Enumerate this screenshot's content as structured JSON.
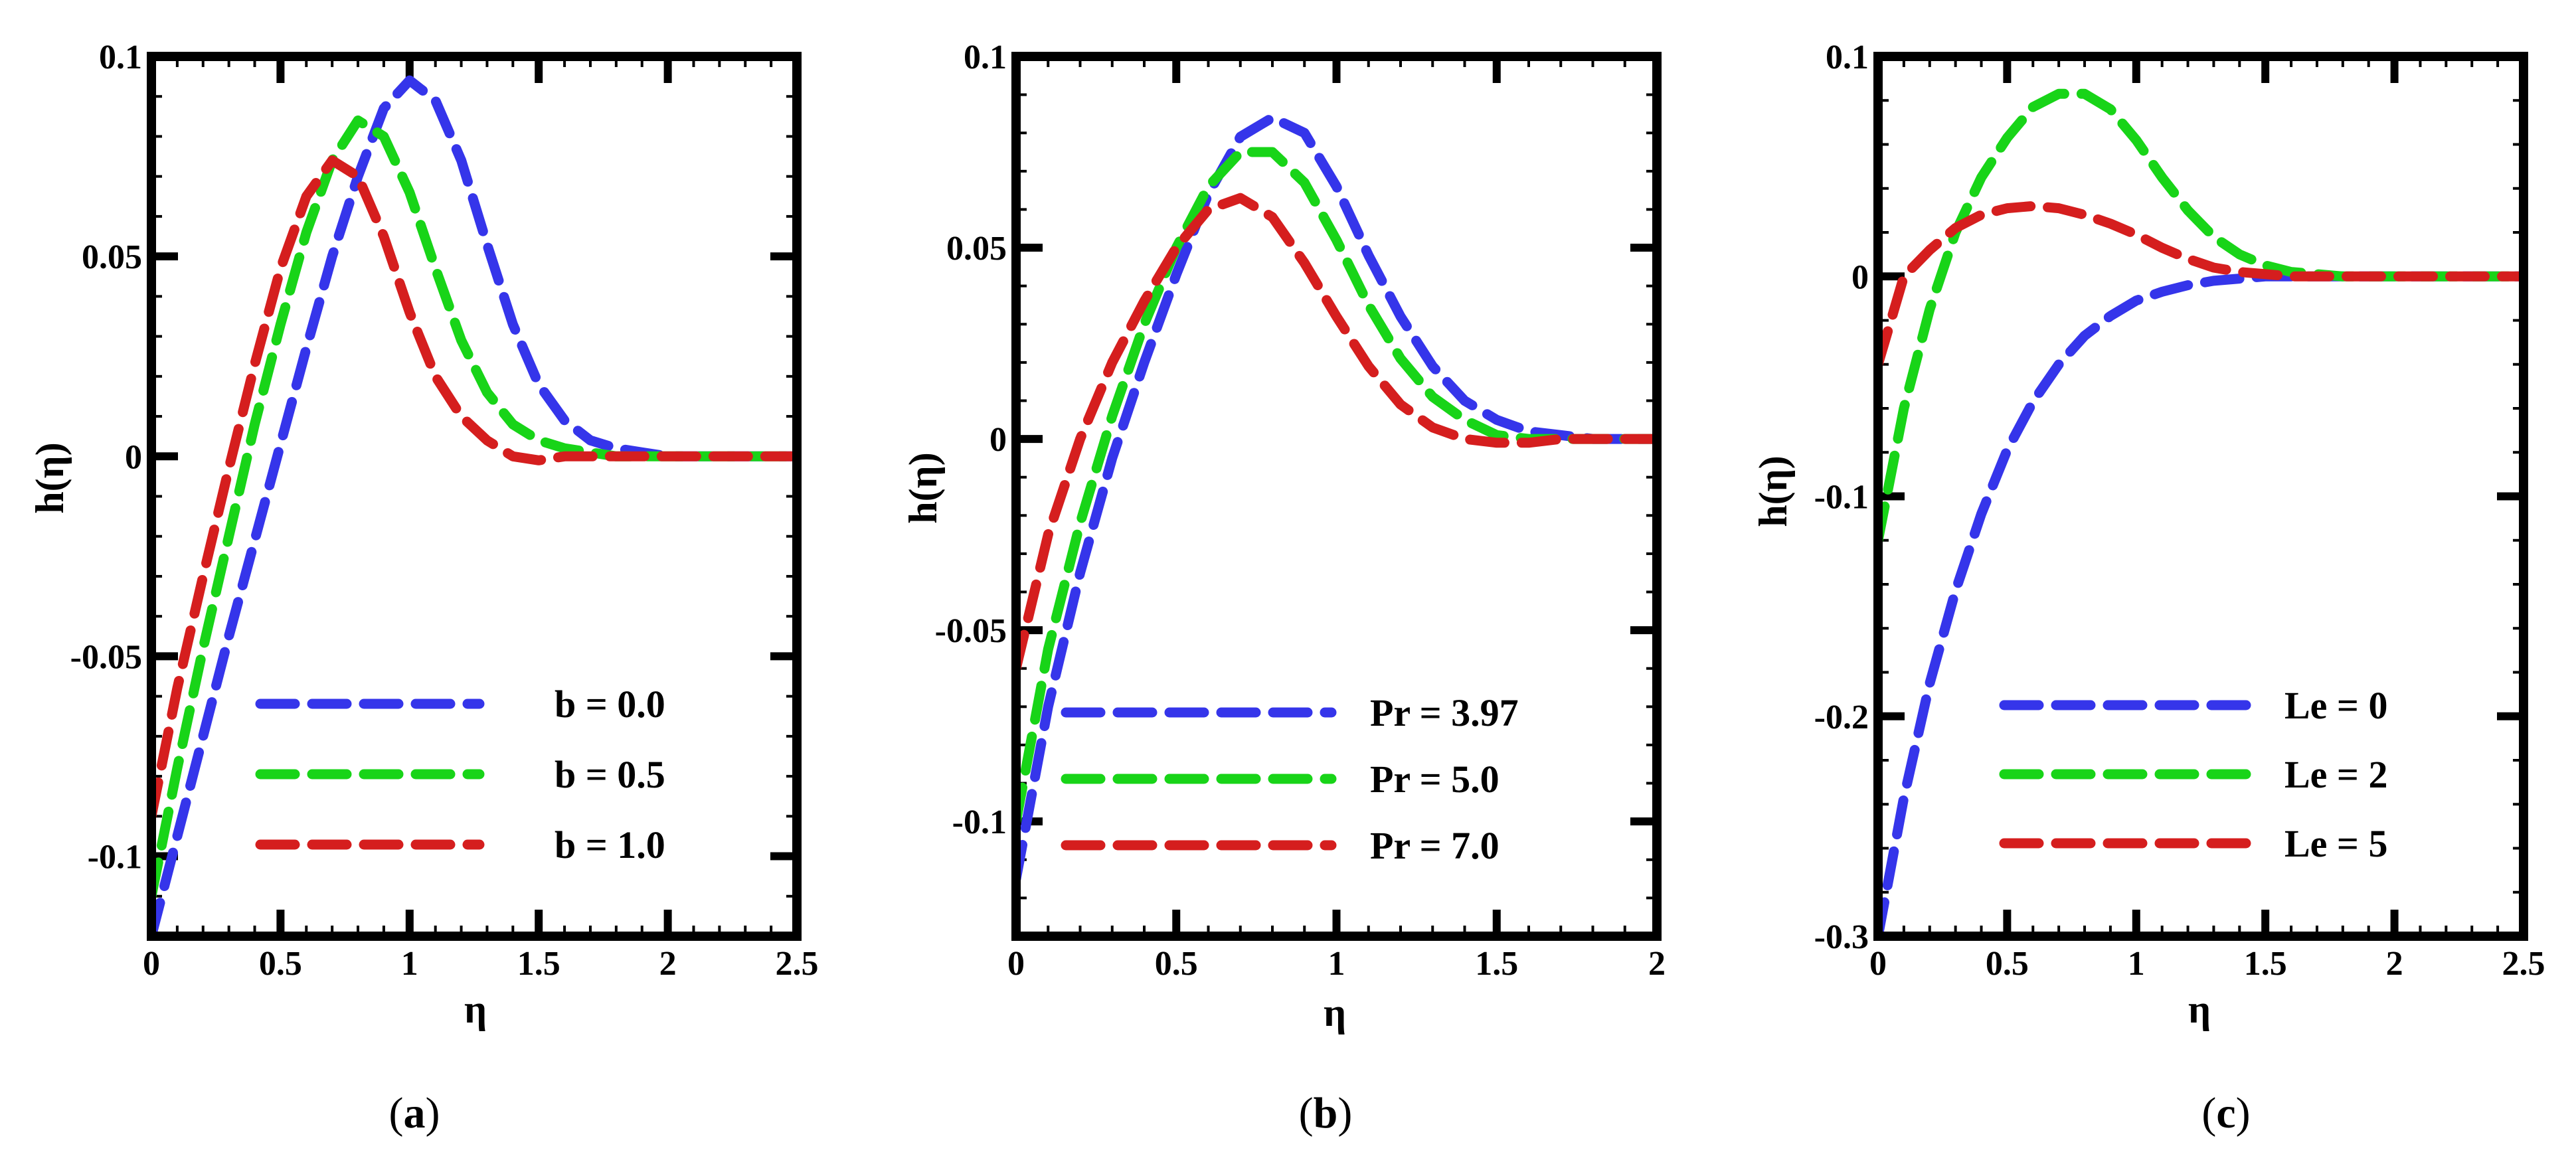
{
  "chart_data": [
    {
      "type": "line",
      "caption": "a",
      "xlabel": "η",
      "ylabel": "h(η)",
      "xlim": [
        0,
        2.5
      ],
      "ylim": [
        -0.12,
        0.1
      ],
      "xticks": [
        0,
        0.5,
        1,
        1.5,
        2,
        2.5
      ],
      "xtick_labels": [
        "0",
        "0.5",
        "1",
        "1.5",
        "2",
        "2.5"
      ],
      "yticks": [
        -0.1,
        -0.05,
        0,
        0.05,
        0.1
      ],
      "ytick_labels": [
        "-0.1",
        "-0.05",
        "0",
        "0.05",
        "0.1"
      ],
      "legend_position": "bottom-right",
      "series": [
        {
          "name": "b = 0.0",
          "color": "#3535ea",
          "x": [
            0,
            0.1,
            0.2,
            0.3,
            0.4,
            0.5,
            0.6,
            0.7,
            0.8,
            0.9,
            1.0,
            1.1,
            1.2,
            1.3,
            1.4,
            1.5,
            1.6,
            1.7,
            1.8,
            1.9,
            2.0,
            2.2,
            2.5
          ],
          "y": [
            -0.12,
            -0.095,
            -0.07,
            -0.045,
            -0.021,
            0.003,
            0.027,
            0.05,
            0.07,
            0.087,
            0.094,
            0.089,
            0.074,
            0.053,
            0.033,
            0.018,
            0.009,
            0.004,
            0.002,
            0.001,
            0.0,
            0.0,
            0.0
          ]
        },
        {
          "name": "b = 0.5",
          "color": "#18d418",
          "x": [
            0,
            0.1,
            0.2,
            0.3,
            0.4,
            0.5,
            0.6,
            0.7,
            0.8,
            0.9,
            1.0,
            1.1,
            1.2,
            1.3,
            1.4,
            1.5,
            1.6,
            1.7,
            1.8,
            1.9,
            2.0,
            2.2,
            2.5
          ],
          "y": [
            -0.11,
            -0.078,
            -0.048,
            -0.02,
            0.008,
            0.033,
            0.056,
            0.074,
            0.084,
            0.08,
            0.066,
            0.047,
            0.029,
            0.016,
            0.008,
            0.004,
            0.002,
            0.001,
            0.0,
            0.0,
            0.0,
            0.0,
            0.0
          ]
        },
        {
          "name": "b = 1.0",
          "color": "#d51e1e",
          "x": [
            0,
            0.1,
            0.2,
            0.3,
            0.4,
            0.5,
            0.6,
            0.7,
            0.8,
            0.9,
            1.0,
            1.1,
            1.2,
            1.3,
            1.4,
            1.5,
            1.6,
            1.7,
            1.8,
            1.9,
            2.0,
            2.2,
            2.5
          ],
          "y": [
            -0.09,
            -0.058,
            -0.03,
            -0.003,
            0.023,
            0.047,
            0.065,
            0.074,
            0.07,
            0.055,
            0.036,
            0.02,
            0.01,
            0.004,
            0.0,
            -0.001,
            0.0,
            0.0,
            0.0,
            0.0,
            0.0,
            0.0,
            0.0
          ]
        }
      ]
    },
    {
      "type": "line",
      "caption": "b",
      "xlabel": "η",
      "ylabel": "h(η)",
      "xlim": [
        0,
        2
      ],
      "ylim": [
        -0.13,
        0.1
      ],
      "xticks": [
        0,
        0.5,
        1,
        1.5,
        2
      ],
      "xtick_labels": [
        "0",
        "0.5",
        "1",
        "1.5",
        "2"
      ],
      "yticks": [
        -0.1,
        -0.05,
        0,
        0.05,
        0.1
      ],
      "ytick_labels": [
        "-0.1",
        "-0.05",
        "0",
        "0.05",
        "0.1"
      ],
      "legend_position": "bottom-right",
      "series": [
        {
          "name": "Pr = 3.97",
          "color": "#3535ea",
          "x": [
            0,
            0.1,
            0.2,
            0.3,
            0.4,
            0.5,
            0.6,
            0.7,
            0.8,
            0.9,
            1.0,
            1.1,
            1.2,
            1.3,
            1.4,
            1.5,
            1.6,
            1.7,
            1.8,
            1.9,
            2.0
          ],
          "y": [
            -0.115,
            -0.07,
            -0.035,
            -0.005,
            0.02,
            0.043,
            0.064,
            0.079,
            0.084,
            0.08,
            0.066,
            0.048,
            0.032,
            0.019,
            0.01,
            0.005,
            0.002,
            0.001,
            0.0,
            0.0,
            0.0
          ]
        },
        {
          "name": "Pr = 5.0",
          "color": "#18d418",
          "x": [
            0,
            0.1,
            0.2,
            0.3,
            0.4,
            0.5,
            0.6,
            0.7,
            0.8,
            0.9,
            1.0,
            1.1,
            1.2,
            1.3,
            1.4,
            1.5,
            1.6,
            1.7,
            1.8,
            1.9,
            2.0
          ],
          "y": [
            -0.1,
            -0.055,
            -0.022,
            0.006,
            0.03,
            0.05,
            0.066,
            0.075,
            0.075,
            0.067,
            0.052,
            0.035,
            0.021,
            0.011,
            0.005,
            0.001,
            0.0,
            0.0,
            0.0,
            0.0,
            0.0
          ]
        },
        {
          "name": "Pr = 7.0",
          "color": "#d51e1e",
          "x": [
            0,
            0.1,
            0.2,
            0.3,
            0.4,
            0.5,
            0.6,
            0.7,
            0.8,
            0.9,
            1.0,
            1.1,
            1.2,
            1.3,
            1.4,
            1.5,
            1.6,
            1.7,
            1.8,
            1.9,
            2.0
          ],
          "y": [
            -0.06,
            -0.025,
            0.0,
            0.02,
            0.036,
            0.05,
            0.06,
            0.063,
            0.058,
            0.046,
            0.032,
            0.019,
            0.009,
            0.003,
            0.0,
            -0.001,
            -0.001,
            0.0,
            0.0,
            0.0,
            0.0
          ]
        }
      ]
    },
    {
      "type": "line",
      "caption": "c",
      "xlabel": "η",
      "ylabel": "h(η)",
      "xlim": [
        0,
        2.5
      ],
      "ylim": [
        -0.3,
        0.1
      ],
      "xticks": [
        0,
        0.5,
        1,
        1.5,
        2,
        2.5
      ],
      "xtick_labels": [
        "0",
        "0.5",
        "1",
        "1.5",
        "2",
        "2.5"
      ],
      "yticks": [
        -0.3,
        -0.2,
        -0.1,
        0,
        0.1
      ],
      "ytick_labels": [
        "-0.3",
        "-0.2",
        "-0.1",
        "0",
        "0.1"
      ],
      "legend_position": "bottom-right",
      "series": [
        {
          "name": "Le = 0",
          "color": "#3535ea",
          "x": [
            0,
            0.1,
            0.2,
            0.3,
            0.4,
            0.5,
            0.6,
            0.7,
            0.8,
            0.9,
            1.0,
            1.1,
            1.2,
            1.3,
            1.4,
            1.5,
            1.6,
            1.8,
            2.0,
            2.5
          ],
          "y": [
            -0.3,
            -0.237,
            -0.185,
            -0.143,
            -0.108,
            -0.079,
            -0.057,
            -0.04,
            -0.027,
            -0.018,
            -0.011,
            -0.007,
            -0.004,
            -0.002,
            -0.001,
            0.0,
            0.0,
            0.0,
            0.0,
            0.0
          ]
        },
        {
          "name": "Le = 2",
          "color": "#18d418",
          "x": [
            0,
            0.1,
            0.2,
            0.3,
            0.4,
            0.5,
            0.6,
            0.7,
            0.8,
            0.9,
            1.0,
            1.1,
            1.2,
            1.3,
            1.4,
            1.5,
            1.6,
            1.7,
            1.8,
            2.0,
            2.5
          ],
          "y": [
            -0.12,
            -0.06,
            -0.015,
            0.02,
            0.045,
            0.063,
            0.077,
            0.083,
            0.083,
            0.076,
            0.062,
            0.045,
            0.03,
            0.018,
            0.01,
            0.005,
            0.002,
            0.001,
            0.0,
            0.0,
            0.0
          ]
        },
        {
          "name": "Le = 5",
          "color": "#d51e1e",
          "x": [
            0,
            0.1,
            0.2,
            0.3,
            0.4,
            0.5,
            0.6,
            0.7,
            0.8,
            0.9,
            1.0,
            1.1,
            1.2,
            1.3,
            1.4,
            1.5,
            1.6,
            1.8,
            2.0,
            2.5
          ],
          "y": [
            -0.04,
            0.0,
            0.012,
            0.022,
            0.028,
            0.031,
            0.032,
            0.031,
            0.028,
            0.024,
            0.019,
            0.013,
            0.008,
            0.004,
            0.002,
            0.001,
            0.0,
            0.0,
            0.0,
            0.0
          ]
        }
      ]
    }
  ]
}
